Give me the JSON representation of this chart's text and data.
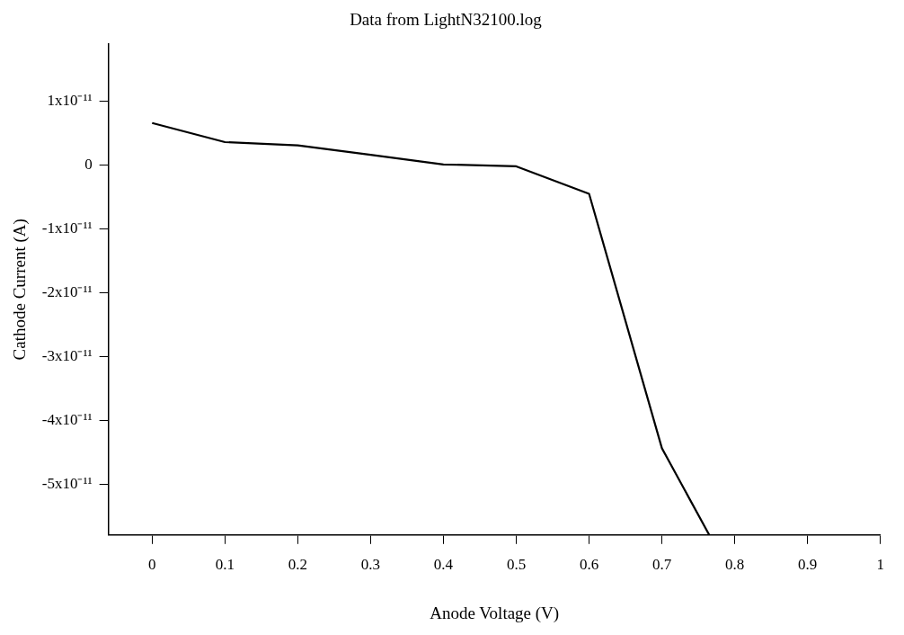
{
  "chart_data": {
    "type": "line",
    "title": "Data from LightN32100.log",
    "xlabel": "Anode Voltage (V)",
    "ylabel": "Cathode Current (A)",
    "x": [
      0,
      0.1,
      0.2,
      0.3,
      0.4,
      0.5,
      0.6,
      0.7,
      0.765
    ],
    "series": [
      {
        "color": "#000000",
        "values": [
          6.6e-12,
          3.6e-12,
          3.1e-12,
          1.6e-12,
          1e-13,
          -2e-13,
          -4.5e-12,
          -4.44e-11,
          -5.8e-11
        ]
      }
    ],
    "xlim": [
      -0.06,
      1.0
    ],
    "ylim": [
      -5.8e-11,
      1.9e-11
    ],
    "xticks": [
      0,
      0.1,
      0.2,
      0.3,
      0.4,
      0.5,
      0.6,
      0.7,
      0.8,
      0.9,
      1
    ],
    "yticks": [
      {
        "value": 1e-11,
        "label": "1x10⁻¹¹"
      },
      {
        "value": 0,
        "label": "0"
      },
      {
        "value": -1e-11,
        "label": "-1x10⁻¹¹"
      },
      {
        "value": -2e-11,
        "label": "-2x10⁻¹¹"
      },
      {
        "value": -3e-11,
        "label": "-3x10⁻¹¹"
      },
      {
        "value": -4e-11,
        "label": "-4x10⁻¹¹"
      },
      {
        "value": -5e-11,
        "label": "-5x10⁻¹¹"
      }
    ],
    "grid": false,
    "legend": false,
    "marker": "none",
    "line_style": "solid"
  }
}
